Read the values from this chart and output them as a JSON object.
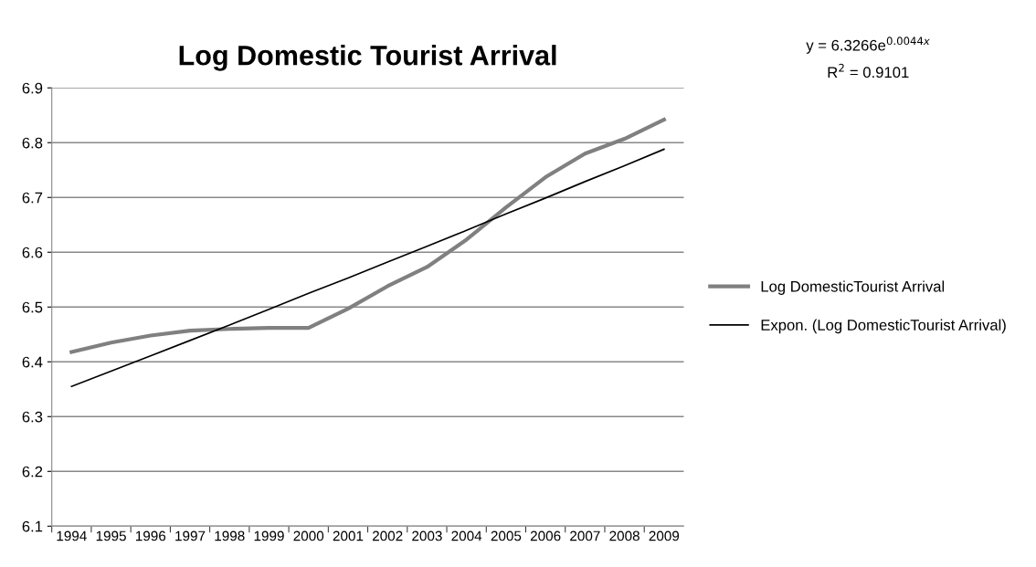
{
  "chart_data": {
    "type": "line",
    "title": "Log Domestic Tourist Arrival",
    "categories": [
      "1994",
      "1995",
      "1996",
      "1997",
      "1998",
      "1999",
      "2000",
      "2001",
      "2002",
      "2003",
      "2004",
      "2005",
      "2006",
      "2007",
      "2008",
      "2009"
    ],
    "series": [
      {
        "name": "Log DomesticTourist Arrival",
        "color": "#808080",
        "values": [
          6.418,
          6.435,
          6.448,
          6.457,
          6.46,
          6.462,
          6.462,
          6.497,
          6.538,
          6.573,
          6.623,
          6.682,
          6.737,
          6.78,
          6.807,
          6.842
        ]
      },
      {
        "name": "Expon. (Log DomesticTourist Arrival)",
        "color": "#000000",
        "values": [
          6.355,
          6.383,
          6.411,
          6.439,
          6.467,
          6.496,
          6.525,
          6.553,
          6.582,
          6.611,
          6.64,
          6.67,
          6.699,
          6.729,
          6.758,
          6.788
        ]
      }
    ],
    "ylim": [
      6.1,
      6.9
    ],
    "yticks": [
      6.1,
      6.2,
      6.3,
      6.4,
      6.5,
      6.6,
      6.7,
      6.8,
      6.9
    ],
    "grid": "y",
    "legend": "right",
    "marker": "none",
    "line_style": "solid",
    "annotations": [
      "y = 6.3266e$^{0.0044x}$",
      "R$^{2}$ = 0.9101"
    ]
  }
}
